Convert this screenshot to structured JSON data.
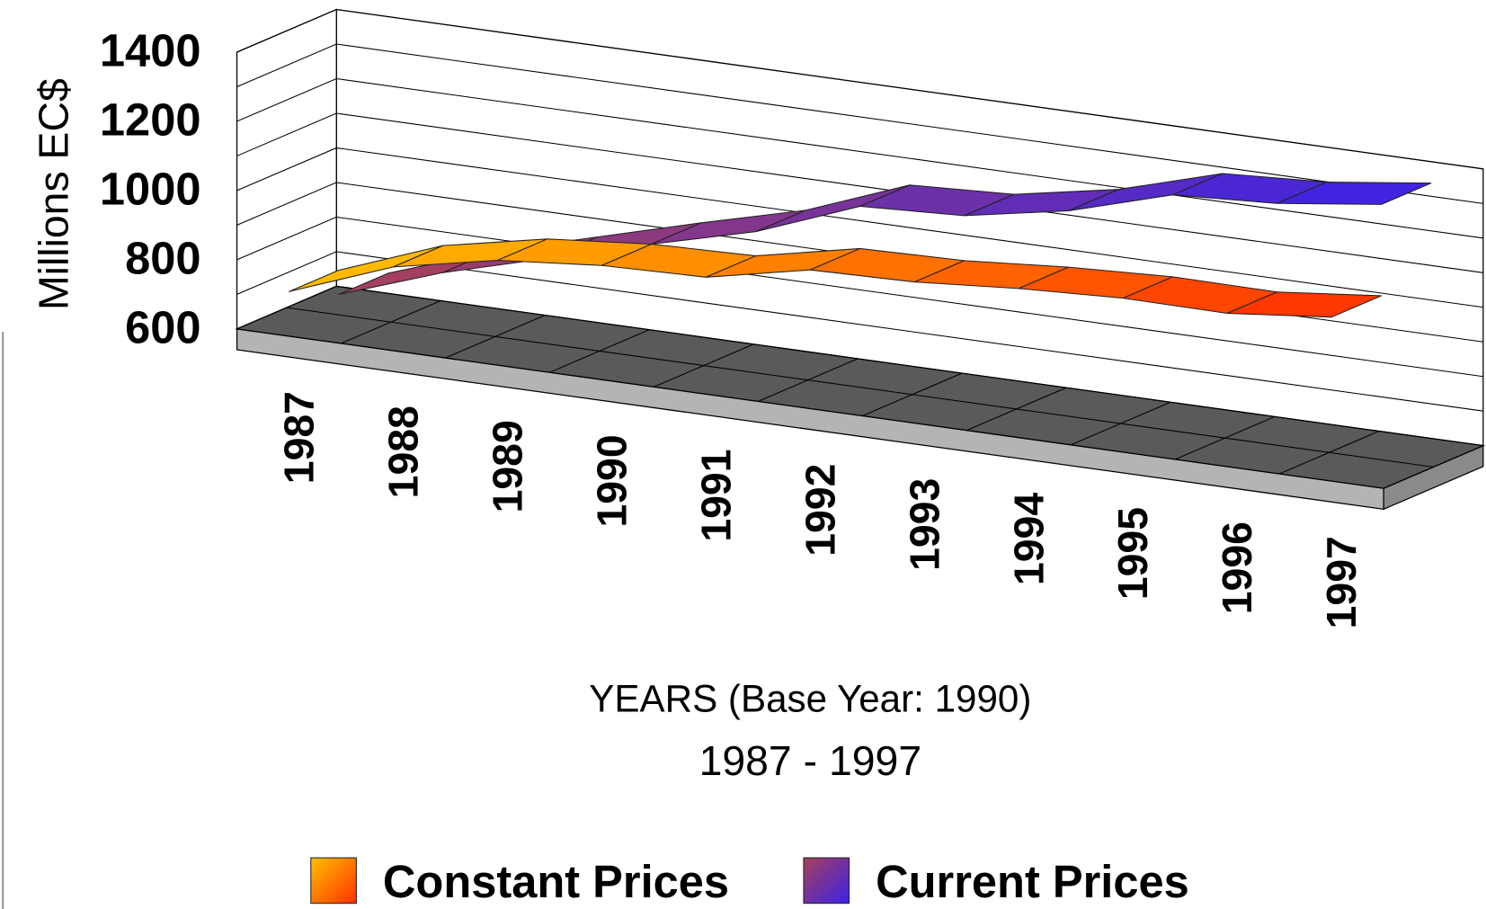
{
  "chart_data": {
    "type": "line3d",
    "y_axis_label": "Millions EC$",
    "x_axis_label": "YEARS (Base Year: 1990)",
    "subtitle": "1987 - 1997",
    "categories": [
      "1987",
      "1988",
      "1989",
      "1990",
      "1991",
      "1992",
      "1993",
      "1994",
      "1995",
      "1996",
      "1997"
    ],
    "series": [
      {
        "name": "Constant Prices",
        "color": "#ffc000",
        "color_end": "#ff3000",
        "values": [
          729,
          842,
          903,
          930,
          938,
          1001,
          1008,
          1031,
          1045,
          1043,
          1074
        ]
      },
      {
        "name": "Current Prices",
        "color": "#a8405a",
        "color_end": "#3a22e8",
        "values": [
          659,
          764,
          847,
          930,
          1008,
          1123,
          1138,
          1194,
          1282,
          1299,
          1338
        ]
      }
    ],
    "ylim": [
      600,
      1400
    ],
    "yticks": [
      600,
      800,
      1000,
      1200,
      1400
    ],
    "grid_yticks": [
      600,
      700,
      800,
      900,
      1000,
      1100,
      1200,
      1300,
      1400
    ],
    "grid": true,
    "legend": "bottom"
  }
}
